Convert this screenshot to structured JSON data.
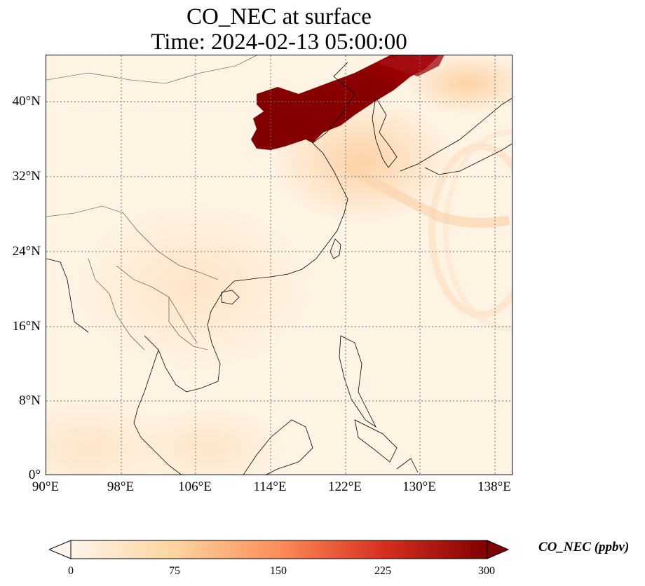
{
  "title": {
    "line1": "CO_NEC at surface",
    "line2": "Time: 2024-02-13 05:00:00"
  },
  "axes": {
    "lat_labels": [
      "40°N",
      "32°N",
      "24°N",
      "16°N",
      "8°N",
      "0°"
    ],
    "lon_labels": [
      "90°E",
      "98°E",
      "106°E",
      "114°E",
      "122°E",
      "130°E",
      "138°E"
    ]
  },
  "colorbar": {
    "label": "CO_NEC (ppbv)",
    "ticks": [
      "0",
      "75",
      "150",
      "225",
      "300"
    ],
    "min": 0,
    "max": 300,
    "extend": "both",
    "colormap_stops": [
      "#fff5eb",
      "#fdd49e",
      "#fc8d59",
      "#d7301f",
      "#7f0000"
    ]
  },
  "map": {
    "region": "East and Southeast Asia",
    "lon_range": [
      90,
      140
    ],
    "lat_range": [
      0,
      45
    ],
    "gridlines": "dotted",
    "plume_color": "#7f0000"
  }
}
